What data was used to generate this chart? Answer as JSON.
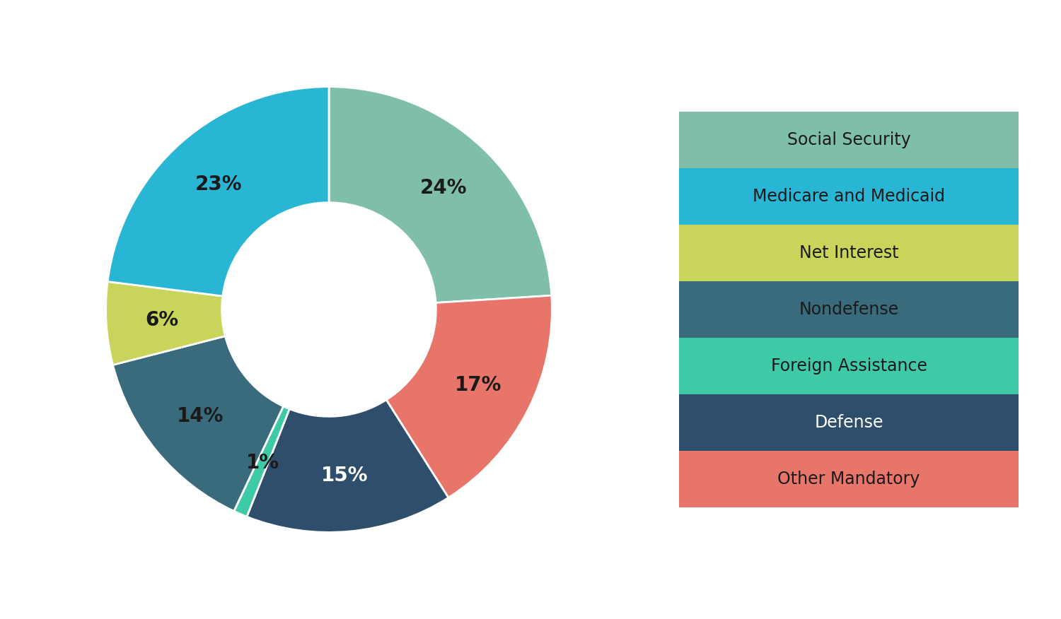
{
  "labels": [
    "Social Security",
    "Other Mandatory",
    "Defense",
    "Foreign Assistance",
    "Nondefense",
    "Net Interest",
    "Medicare and Medicaid"
  ],
  "values": [
    24,
    17,
    15,
    1,
    14,
    6,
    23
  ],
  "colors": [
    "#7fbfaa",
    "#e8756a",
    "#2e4e6b",
    "#3ec9a7",
    "#3a6b7c",
    "#c8d45a",
    "#29b5d4"
  ],
  "pct_labels": [
    "24%",
    "17%",
    "15%",
    "1%",
    "14%",
    "6%",
    "23%"
  ],
  "legend_order_labels": [
    "Social Security",
    "Medicare and Medicaid",
    "Net Interest",
    "Nondefense",
    "Foreign Assistance",
    "Defense",
    "Other Mandatory"
  ],
  "legend_order_colors": [
    "#7fbfaa",
    "#29b5d4",
    "#c8d45a",
    "#3a6b7c",
    "#3ec9a7",
    "#2e4e6b",
    "#e8756a"
  ],
  "legend_text_colors": [
    "#1a1a1a",
    "#1a1a1a",
    "#1a1a1a",
    "#1a1a1a",
    "#1a1a1a",
    "#ffffff",
    "#1a1a1a"
  ],
  "background_color": "#ffffff",
  "wedge_linewidth": 2.0,
  "wedge_edgecolor": "#ffffff"
}
